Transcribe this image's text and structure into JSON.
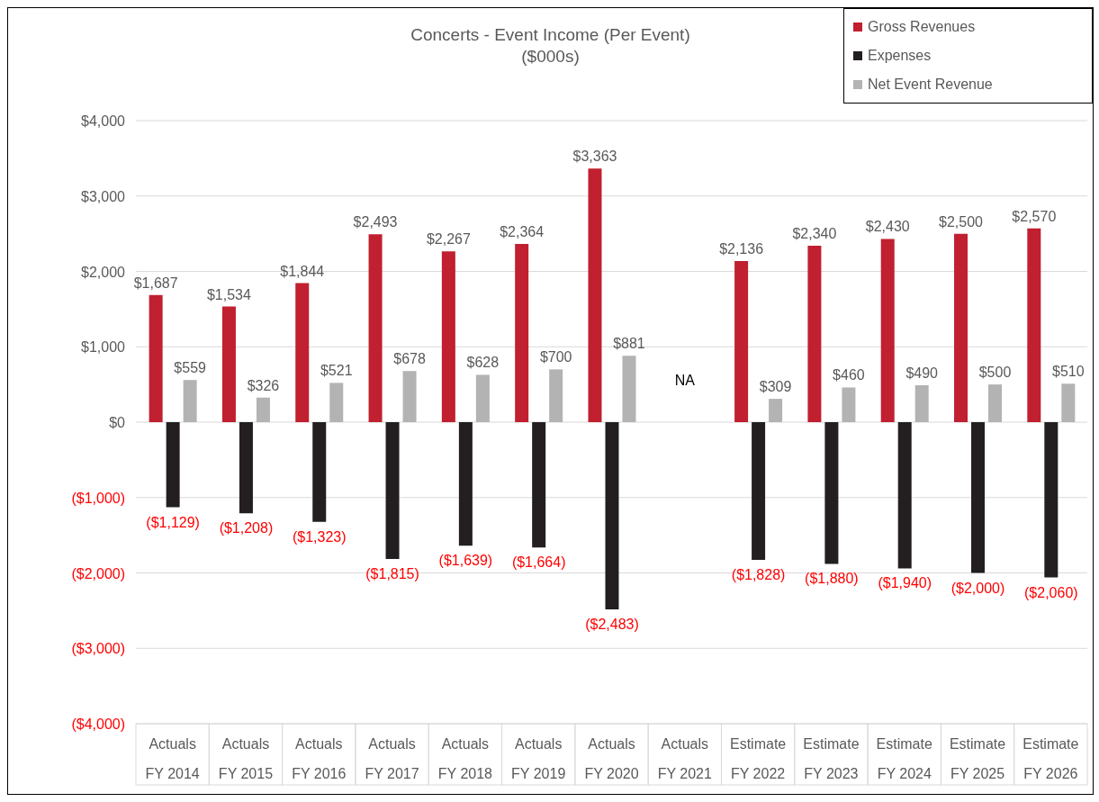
{
  "chart_data": {
    "type": "bar",
    "title": "Concerts - Event Income (Per Event)",
    "subtitle": "($000s)",
    "categories": [
      "Actuals\nFY 2014",
      "Actuals\nFY 2015",
      "Actuals\nFY 2016",
      "Actuals\nFY 2017",
      "Actuals\nFY 2018",
      "Actuals\nFY 2019",
      "Actuals\nFY 2020",
      "Actuals\nFY 2021",
      "Estimate\nFY 2022",
      "Estimate\nFY 2023",
      "Estimate\nFY 2024",
      "Estimate\nFY 2025",
      "Estimate\nFY 2026"
    ],
    "series": [
      {
        "name": "Gross Revenues",
        "color": "#c0202f",
        "values": [
          1687,
          1534,
          1844,
          2493,
          2267,
          2364,
          3363,
          null,
          2136,
          2340,
          2430,
          2500,
          2570
        ],
        "value_labels": [
          "$1,687",
          "$1,534",
          "$1,844",
          "$2,493",
          "$2,267",
          "$2,364",
          "$3,363",
          null,
          "$2,136",
          "$2,340",
          "$2,430",
          "$2,500",
          "$2,570"
        ]
      },
      {
        "name": "Expenses",
        "color": "#231f20",
        "values": [
          -1129,
          -1208,
          -1323,
          -1815,
          -1639,
          -1664,
          -2483,
          null,
          -1828,
          -1880,
          -1940,
          -2000,
          -2060
        ],
        "value_labels": [
          "($1,129)",
          "($1,208)",
          "($1,323)",
          "($1,815)",
          "($1,639)",
          "($1,664)",
          "($2,483)",
          null,
          "($1,828)",
          "($1,880)",
          "($1,940)",
          "($2,000)",
          "($2,060)"
        ]
      },
      {
        "name": "Net Event Revenue",
        "color": "#b3b3b3",
        "values": [
          559,
          326,
          521,
          678,
          628,
          700,
          881,
          null,
          309,
          460,
          490,
          500,
          510
        ],
        "value_labels": [
          "$559",
          "$326",
          "$521",
          "$678",
          "$628",
          "$700",
          "$881",
          null,
          "$309",
          "$460",
          "$490",
          "$500",
          "$510"
        ]
      }
    ],
    "ylim": [
      -4000,
      4000
    ],
    "yticks": [
      {
        "value": -4000,
        "label": "($4,000)"
      },
      {
        "value": -3000,
        "label": "($3,000)"
      },
      {
        "value": -2000,
        "label": "($2,000)"
      },
      {
        "value": -1000,
        "label": "($1,000)"
      },
      {
        "value": 0,
        "label": "$0"
      },
      {
        "value": 1000,
        "label": "$1,000"
      },
      {
        "value": 2000,
        "label": "$2,000"
      },
      {
        "value": 3000,
        "label": "$3,000"
      },
      {
        "value": 4000,
        "label": "$4,000"
      }
    ],
    "grid": "y",
    "legend": "top right",
    "annotations": [
      "NA"
    ]
  }
}
